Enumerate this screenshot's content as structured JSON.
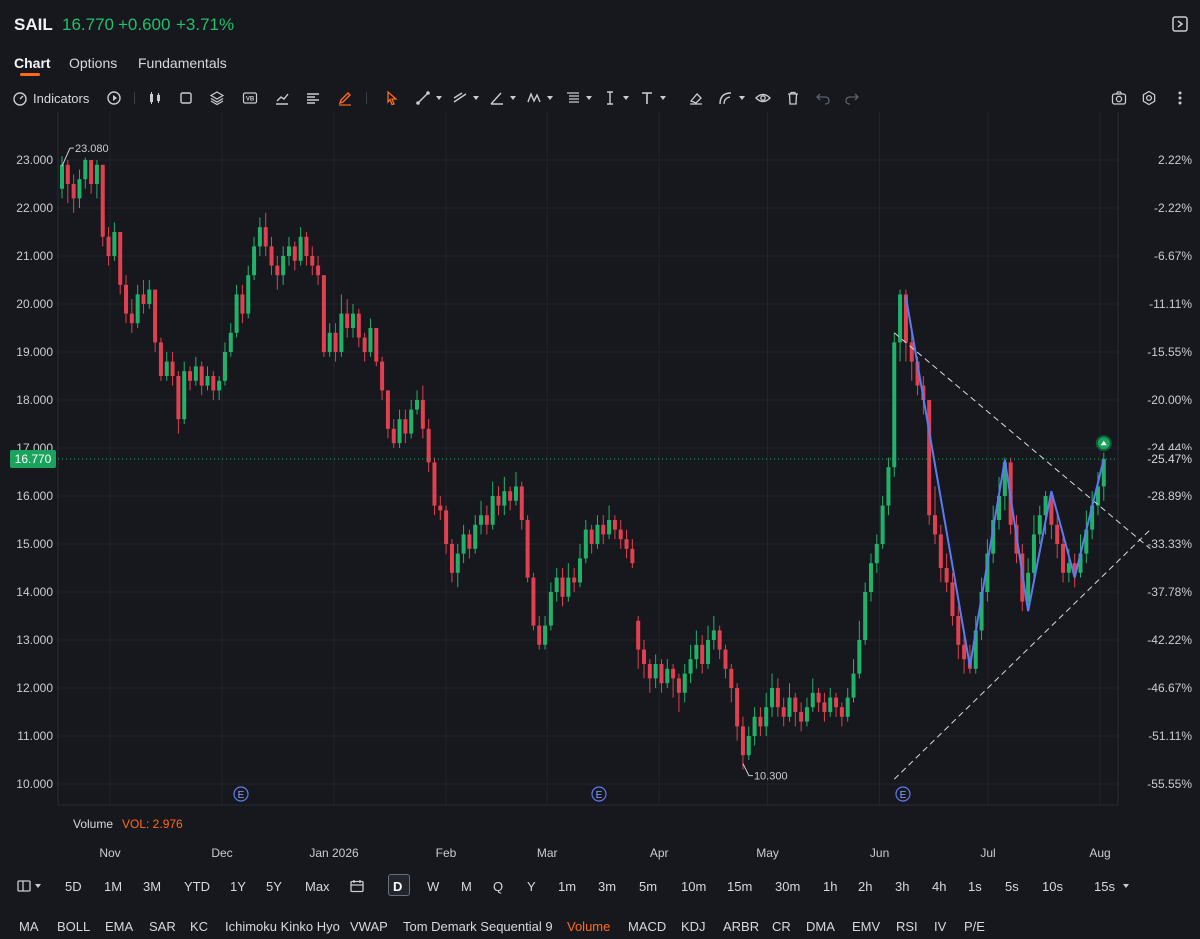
{
  "quote": {
    "symbol": "SAIL",
    "price": "16.770",
    "change": "+0.600",
    "change_pct": "+3.71%"
  },
  "tabs": [
    "Chart",
    "Options",
    "Fundamentals"
  ],
  "toolbar": {
    "indicators_label": "Indicators",
    "icons": [
      "replay-icon",
      "candlestick-icon",
      "crop-icon",
      "layers-icon",
      "vb-icon",
      "compare-chart-icon",
      "align-icon",
      "brush-icon",
      "cursor-icon",
      "trend-line-icon",
      "ray-icon",
      "angle-icon",
      "pattern-icon",
      "fib-icon",
      "vertical-line-icon",
      "text-icon",
      "eraser-icon",
      "arc-icon",
      "eye-icon",
      "trash-icon",
      "undo-icon",
      "redo-icon",
      "camera-icon",
      "settings-icon",
      "more-icon"
    ]
  },
  "chart_data": {
    "type": "candlestick",
    "symbol": "SAIL",
    "ylim": [
      10.0,
      23.0
    ],
    "y_ticks_left": [
      "23.000",
      "22.000",
      "21.000",
      "20.000",
      "19.000",
      "18.000",
      "17.000",
      "16.000",
      "15.000",
      "14.000",
      "13.000",
      "12.000",
      "11.000",
      "10.000"
    ],
    "y_ticks_right": [
      "2.22%",
      "-2.22%",
      "-6.67%",
      "-11.11%",
      "-15.55%",
      "-20.00%",
      "-24.44%",
      "-28.89%",
      "-33.33%",
      "-37.78%",
      "-42.22%",
      "-46.67%",
      "-51.11%",
      "-55.55%"
    ],
    "right_tick_values": [
      23.0,
      22.0,
      21.0,
      20.0,
      19.0,
      18.0,
      17.0,
      16.0,
      15.0,
      14.0,
      13.0,
      12.0,
      11.0,
      10.0
    ],
    "x_labels": [
      {
        "label": "Nov",
        "day": 10
      },
      {
        "label": "Dec",
        "day": 41
      },
      {
        "label": "Jan 2026",
        "day": 72
      },
      {
        "label": "Feb",
        "day": 103
      },
      {
        "label": "Mar",
        "day": 131
      },
      {
        "label": "Apr",
        "day": 162
      },
      {
        "label": "May",
        "day": 192
      },
      {
        "label": "Jun",
        "day": 223
      },
      {
        "label": "Jul",
        "day": 253
      },
      {
        "label": "Aug",
        "day": 284
      }
    ],
    "last_price_label": "16.770",
    "last_price_pct": "-25.47%",
    "high_label": "23.080",
    "low_label": "10.300",
    "earnings_marker": "E",
    "earnings_days": [
      58,
      157,
      240
    ],
    "volume_label": "Volume",
    "volume_value": "VOL: 2.976",
    "colors": {
      "up": "#21b26a",
      "down": "#e0404f",
      "zigzag": "#5b7cf0",
      "background": "#16181d"
    },
    "candles": [
      [
        0,
        22.4,
        22.9,
        23.08,
        22.2
      ],
      [
        1,
        22.9,
        22.5,
        23.0,
        22.1
      ],
      [
        2,
        22.5,
        22.2,
        22.7,
        21.9
      ],
      [
        3,
        22.2,
        22.6,
        22.8,
        22.0
      ],
      [
        4,
        22.6,
        23.0,
        23.05,
        22.4
      ],
      [
        5,
        23.0,
        22.5,
        23.0,
        22.3
      ],
      [
        6,
        22.5,
        22.9,
        23.0,
        22.2
      ],
      [
        7,
        22.9,
        21.4,
        22.9,
        21.2
      ],
      [
        8,
        21.4,
        21.0,
        21.6,
        20.8
      ],
      [
        9,
        21.0,
        21.5,
        21.7,
        20.9
      ],
      [
        10,
        21.5,
        20.4,
        21.5,
        20.2
      ],
      [
        11,
        20.4,
        19.8,
        20.6,
        19.6
      ],
      [
        12,
        19.8,
        19.6,
        20.1,
        19.4
      ],
      [
        13,
        19.6,
        20.2,
        20.4,
        19.5
      ],
      [
        14,
        20.2,
        20.0,
        20.5,
        19.8
      ],
      [
        15,
        20.0,
        20.3,
        20.5,
        19.9
      ],
      [
        16,
        20.3,
        19.2,
        20.3,
        19.0
      ],
      [
        17,
        19.2,
        18.5,
        19.3,
        18.4
      ],
      [
        18,
        18.5,
        18.8,
        19.0,
        18.4
      ],
      [
        19,
        18.8,
        18.5,
        19.0,
        18.3
      ],
      [
        20,
        18.5,
        17.6,
        18.6,
        17.3
      ],
      [
        21,
        17.6,
        18.6,
        18.8,
        17.5
      ],
      [
        22,
        18.6,
        18.4,
        18.7,
        18.2
      ],
      [
        23,
        18.4,
        18.7,
        18.9,
        18.3
      ],
      [
        24,
        18.7,
        18.3,
        18.8,
        18.1
      ],
      [
        25,
        18.3,
        18.5,
        18.7,
        18.2
      ],
      [
        26,
        18.5,
        18.2,
        18.6,
        18.0
      ],
      [
        27,
        18.2,
        18.4,
        18.5,
        18.0
      ],
      [
        28,
        18.4,
        19.0,
        19.2,
        18.3
      ],
      [
        29,
        19.0,
        19.4,
        19.6,
        18.9
      ],
      [
        30,
        19.4,
        20.2,
        20.4,
        19.3
      ],
      [
        31,
        20.2,
        19.8,
        20.4,
        19.6
      ],
      [
        32,
        19.8,
        20.6,
        20.8,
        19.7
      ],
      [
        33,
        20.6,
        21.2,
        21.4,
        20.5
      ],
      [
        34,
        21.2,
        21.6,
        21.8,
        21.0
      ],
      [
        35,
        21.6,
        21.2,
        21.9,
        21.0
      ],
      [
        36,
        21.2,
        20.8,
        21.4,
        20.6
      ],
      [
        37,
        20.8,
        20.6,
        21.0,
        20.3
      ],
      [
        38,
        20.6,
        21.0,
        21.2,
        20.4
      ],
      [
        39,
        21.0,
        21.2,
        21.4,
        20.8
      ],
      [
        40,
        21.2,
        20.9,
        21.3,
        20.7
      ],
      [
        41,
        20.9,
        21.4,
        21.6,
        20.8
      ],
      [
        42,
        21.4,
        21.0,
        21.5,
        20.8
      ],
      [
        43,
        21.0,
        20.8,
        21.2,
        20.6
      ],
      [
        44,
        20.8,
        20.6,
        21.0,
        20.4
      ],
      [
        45,
        20.6,
        19.0,
        20.6,
        18.9
      ],
      [
        46,
        19.0,
        19.4,
        19.6,
        18.9
      ],
      [
        47,
        19.4,
        19.0,
        19.6,
        18.8
      ],
      [
        48,
        19.0,
        19.8,
        20.2,
        18.9
      ],
      [
        49,
        19.8,
        19.5,
        20.1,
        19.3
      ],
      [
        50,
        19.5,
        19.8,
        20.0,
        19.3
      ],
      [
        51,
        19.8,
        19.3,
        19.9,
        19.1
      ],
      [
        52,
        19.3,
        19.0,
        19.4,
        18.8
      ],
      [
        53,
        19.0,
        19.5,
        19.7,
        18.9
      ],
      [
        54,
        19.5,
        18.8,
        19.5,
        18.7
      ],
      [
        55,
        18.8,
        18.2,
        18.9,
        18.0
      ],
      [
        56,
        18.2,
        17.4,
        18.2,
        17.2
      ],
      [
        57,
        17.4,
        17.1,
        17.6,
        17.0
      ],
      [
        58,
        17.1,
        17.6,
        17.8,
        17.0
      ],
      [
        59,
        17.6,
        17.3,
        17.8,
        17.1
      ],
      [
        60,
        17.3,
        17.8,
        18.0,
        17.2
      ],
      [
        61,
        17.8,
        18.0,
        18.2,
        17.7
      ],
      [
        62,
        18.0,
        17.4,
        18.3,
        17.2
      ],
      [
        63,
        17.4,
        16.7,
        17.6,
        16.5
      ],
      [
        64,
        16.7,
        15.8,
        16.8,
        15.6
      ],
      [
        65,
        15.8,
        15.7,
        16.0,
        15.5
      ],
      [
        66,
        15.7,
        15.0,
        15.8,
        14.8
      ],
      [
        67,
        15.0,
        14.4,
        15.1,
        14.2
      ],
      [
        68,
        14.4,
        14.8,
        15.0,
        14.1
      ],
      [
        69,
        14.8,
        15.2,
        15.4,
        14.6
      ],
      [
        70,
        15.2,
        14.9,
        15.3,
        14.7
      ],
      [
        71,
        14.9,
        15.4,
        15.6,
        14.8
      ],
      [
        72,
        15.4,
        15.6,
        15.9,
        15.2
      ],
      [
        73,
        15.6,
        15.4,
        15.8,
        15.2
      ],
      [
        74,
        15.4,
        16.0,
        16.3,
        15.3
      ],
      [
        75,
        16.0,
        15.8,
        16.2,
        15.6
      ],
      [
        76,
        15.8,
        16.1,
        16.4,
        15.6
      ],
      [
        77,
        16.1,
        15.9,
        16.2,
        15.7
      ],
      [
        78,
        15.9,
        16.2,
        16.5,
        15.8
      ],
      [
        79,
        16.2,
        15.5,
        16.3,
        15.3
      ],
      [
        80,
        15.5,
        14.3,
        15.6,
        14.2
      ],
      [
        81,
        14.3,
        13.3,
        14.4,
        13.2
      ],
      [
        82,
        13.3,
        12.9,
        13.5,
        12.8
      ],
      [
        83,
        12.9,
        13.3,
        13.5,
        12.8
      ],
      [
        84,
        13.3,
        14.0,
        14.2,
        13.2
      ],
      [
        85,
        14.0,
        14.3,
        14.5,
        13.8
      ],
      [
        86,
        14.3,
        13.9,
        14.5,
        13.7
      ],
      [
        87,
        13.9,
        14.3,
        14.6,
        13.8
      ],
      [
        88,
        14.3,
        14.2,
        14.5,
        14.0
      ],
      [
        89,
        14.2,
        14.7,
        15.0,
        14.1
      ],
      [
        90,
        14.7,
        15.3,
        15.5,
        14.6
      ],
      [
        91,
        15.3,
        15.0,
        15.4,
        14.8
      ],
      [
        92,
        15.0,
        15.4,
        15.6,
        14.9
      ],
      [
        93,
        15.4,
        15.2,
        15.6,
        15.0
      ],
      [
        94,
        15.2,
        15.5,
        15.8,
        15.1
      ],
      [
        95,
        15.5,
        15.3,
        15.6,
        15.1
      ],
      [
        96,
        15.3,
        15.1,
        15.5,
        14.9
      ],
      [
        97,
        15.1,
        14.9,
        15.3,
        14.7
      ],
      [
        98,
        14.9,
        14.6,
        15.1,
        14.5
      ],
      [
        99,
        13.4,
        12.8,
        13.5,
        12.4
      ],
      [
        100,
        12.8,
        12.5,
        13.0,
        12.2
      ],
      [
        101,
        12.5,
        12.2,
        12.6,
        11.9
      ],
      [
        102,
        12.2,
        12.5,
        12.7,
        12.0
      ],
      [
        103,
        12.5,
        12.1,
        12.6,
        11.9
      ],
      [
        104,
        12.1,
        12.4,
        12.6,
        12.0
      ],
      [
        105,
        12.4,
        12.2,
        12.5,
        11.8
      ],
      [
        106,
        12.2,
        11.9,
        12.3,
        11.5
      ],
      [
        107,
        11.9,
        12.3,
        12.5,
        11.7
      ],
      [
        108,
        12.3,
        12.6,
        12.9,
        12.1
      ],
      [
        109,
        12.6,
        12.9,
        13.2,
        12.4
      ],
      [
        110,
        12.9,
        12.5,
        13.1,
        12.3
      ],
      [
        111,
        12.5,
        13.0,
        13.3,
        12.4
      ],
      [
        112,
        13.0,
        13.2,
        13.5,
        12.8
      ],
      [
        113,
        13.2,
        12.8,
        13.3,
        12.6
      ],
      [
        114,
        12.8,
        12.4,
        12.9,
        12.2
      ],
      [
        115,
        12.4,
        12.0,
        12.5,
        11.7
      ],
      [
        116,
        12.0,
        11.2,
        12.1,
        10.9
      ],
      [
        117,
        11.2,
        10.6,
        11.4,
        10.3
      ],
      [
        118,
        10.6,
        11.0,
        11.2,
        10.5
      ],
      [
        119,
        11.0,
        11.4,
        11.6,
        10.8
      ],
      [
        120,
        11.4,
        11.2,
        11.6,
        11.0
      ],
      [
        121,
        11.2,
        11.6,
        11.9,
        11.0
      ],
      [
        122,
        11.6,
        12.0,
        12.3,
        11.4
      ],
      [
        123,
        12.0,
        11.6,
        12.2,
        11.4
      ],
      [
        124,
        11.6,
        11.4,
        11.8,
        11.2
      ],
      [
        125,
        11.4,
        11.8,
        12.1,
        11.3
      ],
      [
        126,
        11.8,
        11.5,
        11.9,
        11.2
      ],
      [
        127,
        11.5,
        11.3,
        11.7,
        11.1
      ],
      [
        128,
        11.3,
        11.6,
        11.8,
        11.2
      ],
      [
        129,
        11.6,
        11.9,
        12.2,
        11.5
      ],
      [
        130,
        11.9,
        11.7,
        12.0,
        11.5
      ],
      [
        131,
        11.7,
        11.5,
        11.9,
        11.3
      ],
      [
        132,
        11.5,
        11.8,
        12.0,
        11.4
      ],
      [
        133,
        11.8,
        11.6,
        11.9,
        11.4
      ],
      [
        134,
        11.6,
        11.4,
        11.7,
        11.2
      ],
      [
        135,
        11.4,
        11.8,
        12.0,
        11.3
      ],
      [
        136,
        11.8,
        12.3,
        12.6,
        11.7
      ],
      [
        137,
        12.3,
        13.0,
        13.4,
        12.2
      ],
      [
        138,
        13.0,
        14.0,
        14.2,
        12.9
      ],
      [
        139,
        14.0,
        14.6,
        14.8,
        13.8
      ],
      [
        140,
        14.6,
        15.0,
        15.2,
        14.4
      ],
      [
        141,
        15.0,
        15.8,
        16.0,
        14.9
      ],
      [
        142,
        15.8,
        16.6,
        16.8,
        15.6
      ],
      [
        143,
        16.6,
        19.2,
        19.4,
        16.4
      ],
      [
        144,
        19.2,
        20.2,
        20.3,
        18.8
      ],
      [
        145,
        20.2,
        19.2,
        20.3,
        18.8
      ],
      [
        146,
        19.2,
        18.8,
        19.4,
        18.4
      ],
      [
        147,
        18.8,
        18.3,
        18.9,
        18.1
      ],
      [
        148,
        18.3,
        18.0,
        18.5,
        17.7
      ],
      [
        149,
        18.0,
        15.6,
        18.0,
        15.4
      ],
      [
        150,
        15.6,
        15.2,
        16.2,
        15.0
      ],
      [
        151,
        15.2,
        14.5,
        15.4,
        14.2
      ],
      [
        152,
        14.5,
        14.2,
        14.8,
        14.0
      ],
      [
        153,
        14.2,
        13.5,
        14.4,
        13.3
      ],
      [
        154,
        13.5,
        12.9,
        13.7,
        12.6
      ],
      [
        155,
        12.9,
        12.6,
        13.1,
        12.3
      ],
      [
        156,
        12.6,
        12.4,
        12.9,
        12.3
      ],
      [
        157,
        12.4,
        13.2,
        13.5,
        12.3
      ],
      [
        158,
        13.2,
        14.0,
        14.3,
        13.0
      ],
      [
        159,
        14.0,
        14.8,
        15.1,
        13.8
      ],
      [
        160,
        14.8,
        15.5,
        15.8,
        14.6
      ],
      [
        161,
        15.5,
        16.0,
        16.4,
        15.3
      ],
      [
        162,
        16.0,
        16.7,
        16.8,
        15.7
      ],
      [
        163,
        16.7,
        15.4,
        16.8,
        15.2
      ],
      [
        164,
        15.4,
        14.8,
        15.6,
        14.6
      ],
      [
        165,
        14.8,
        13.8,
        15.0,
        13.6
      ],
      [
        166,
        13.8,
        14.4,
        14.7,
        13.6
      ],
      [
        167,
        14.4,
        15.2,
        15.6,
        14.2
      ],
      [
        168,
        15.2,
        15.6,
        15.8,
        15.0
      ],
      [
        169,
        15.6,
        16.0,
        16.1,
        15.2
      ],
      [
        170,
        16.0,
        15.4,
        16.1,
        15.1
      ],
      [
        171,
        15.4,
        15.0,
        15.6,
        14.7
      ],
      [
        172,
        15.0,
        14.4,
        15.2,
        14.2
      ],
      [
        173,
        14.4,
        14.6,
        14.9,
        14.2
      ],
      [
        174,
        14.6,
        14.4,
        14.8,
        14.1
      ],
      [
        175,
        14.4,
        14.8,
        15.2,
        14.3
      ],
      [
        176,
        14.8,
        15.3,
        15.7,
        14.6
      ],
      [
        177,
        15.3,
        15.8,
        16.1,
        15.1
      ],
      [
        178,
        15.8,
        16.2,
        16.5,
        15.6
      ],
      [
        179,
        16.2,
        16.77,
        16.9,
        15.9
      ]
    ],
    "zigzag": [
      [
        145,
        20.15
      ],
      [
        156,
        12.45
      ],
      [
        162,
        16.75
      ],
      [
        166,
        13.6
      ],
      [
        170,
        16.1
      ],
      [
        174,
        14.3
      ],
      [
        179,
        16.77
      ]
    ],
    "triangle_upper": [
      [
        143,
        19.4
      ],
      [
        187,
        14.9
      ]
    ],
    "triangle_lower": [
      [
        143,
        10.1
      ],
      [
        187,
        15.3
      ]
    ]
  },
  "periods": [
    "5D",
    "1M",
    "3M",
    "YTD",
    "1Y",
    "5Y",
    "Max",
    "D",
    "W",
    "M",
    "Q",
    "Y",
    "1m",
    "3m",
    "5m",
    "10m",
    "15m",
    "30m",
    "1h",
    "2h",
    "3h",
    "4h",
    "1s",
    "5s",
    "10s",
    "15s"
  ],
  "selected_period": "D",
  "indicators": [
    "MA",
    "BOLL",
    "EMA",
    "SAR",
    "KC",
    "Ichimoku Kinko Hyo",
    "VWAP",
    "Tom Demark Sequential 9",
    "Volume",
    "MACD",
    "KDJ",
    "ARBR",
    "CR",
    "DMA",
    "EMV",
    "RSI",
    "IV",
    "P/E"
  ],
  "active_indicator": "Volume"
}
